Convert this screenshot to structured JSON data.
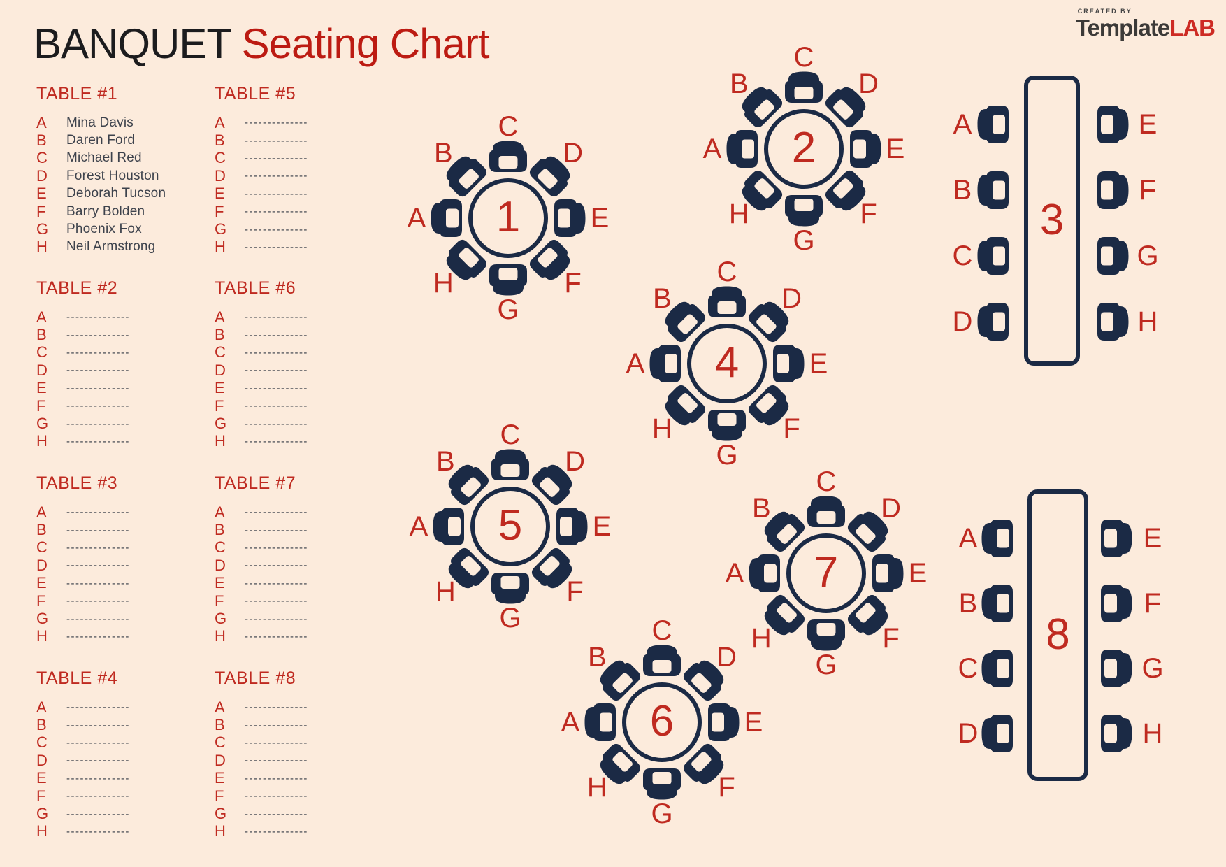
{
  "header": {
    "title_black": "BANQUET",
    "title_red": "Seating Chart"
  },
  "logo": {
    "tagline": "CREATED BY",
    "brand_dark": "Template",
    "brand_red": "LAB"
  },
  "colors": {
    "background": "#fcebdc",
    "navy": "#1b2a45",
    "red": "#bf2a20",
    "title_red": "#bc1b12",
    "title_black": "#1c1c1e",
    "name_text": "#3d424c",
    "dash": "#3a404a",
    "logo_gray": "#454545",
    "logo_dark": "#3c3a38"
  },
  "placeholder_dashes": "--------------",
  "table_lists": [
    {
      "title": "TABLE #1",
      "seats": [
        {
          "letter": "A",
          "name": "Mina Davis"
        },
        {
          "letter": "B",
          "name": "Daren Ford"
        },
        {
          "letter": "C",
          "name": "Michael Red"
        },
        {
          "letter": "D",
          "name": "Forest Houston"
        },
        {
          "letter": "E",
          "name": "Deborah Tucson"
        },
        {
          "letter": "F",
          "name": "Barry Bolden"
        },
        {
          "letter": "G",
          "name": "Phoenix Fox"
        },
        {
          "letter": "H",
          "name": "Neil Armstrong"
        }
      ]
    },
    {
      "title": "TABLE #2",
      "seats": [
        {
          "letter": "A",
          "name": ""
        },
        {
          "letter": "B",
          "name": ""
        },
        {
          "letter": "C",
          "name": ""
        },
        {
          "letter": "D",
          "name": ""
        },
        {
          "letter": "E",
          "name": ""
        },
        {
          "letter": "F",
          "name": ""
        },
        {
          "letter": "G",
          "name": ""
        },
        {
          "letter": "H",
          "name": ""
        }
      ]
    },
    {
      "title": "TABLE #3",
      "seats": [
        {
          "letter": "A",
          "name": ""
        },
        {
          "letter": "B",
          "name": ""
        },
        {
          "letter": "C",
          "name": ""
        },
        {
          "letter": "D",
          "name": ""
        },
        {
          "letter": "E",
          "name": ""
        },
        {
          "letter": "F",
          "name": ""
        },
        {
          "letter": "G",
          "name": ""
        },
        {
          "letter": "H",
          "name": ""
        }
      ]
    },
    {
      "title": "TABLE #4",
      "seats": [
        {
          "letter": "A",
          "name": ""
        },
        {
          "letter": "B",
          "name": ""
        },
        {
          "letter": "C",
          "name": ""
        },
        {
          "letter": "D",
          "name": ""
        },
        {
          "letter": "E",
          "name": ""
        },
        {
          "letter": "F",
          "name": ""
        },
        {
          "letter": "G",
          "name": ""
        },
        {
          "letter": "H",
          "name": ""
        }
      ]
    },
    {
      "title": "TABLE #5",
      "seats": [
        {
          "letter": "A",
          "name": ""
        },
        {
          "letter": "B",
          "name": ""
        },
        {
          "letter": "C",
          "name": ""
        },
        {
          "letter": "D",
          "name": ""
        },
        {
          "letter": "E",
          "name": ""
        },
        {
          "letter": "F",
          "name": ""
        },
        {
          "letter": "G",
          "name": ""
        },
        {
          "letter": "H",
          "name": ""
        }
      ]
    },
    {
      "title": "TABLE #6",
      "seats": [
        {
          "letter": "A",
          "name": ""
        },
        {
          "letter": "B",
          "name": ""
        },
        {
          "letter": "C",
          "name": ""
        },
        {
          "letter": "D",
          "name": ""
        },
        {
          "letter": "E",
          "name": ""
        },
        {
          "letter": "F",
          "name": ""
        },
        {
          "letter": "G",
          "name": ""
        },
        {
          "letter": "H",
          "name": ""
        }
      ]
    },
    {
      "title": "TABLE #7",
      "seats": [
        {
          "letter": "A",
          "name": ""
        },
        {
          "letter": "B",
          "name": ""
        },
        {
          "letter": "C",
          "name": ""
        },
        {
          "letter": "D",
          "name": ""
        },
        {
          "letter": "E",
          "name": ""
        },
        {
          "letter": "F",
          "name": ""
        },
        {
          "letter": "G",
          "name": ""
        },
        {
          "letter": "H",
          "name": ""
        }
      ]
    },
    {
      "title": "TABLE #8",
      "seats": [
        {
          "letter": "A",
          "name": ""
        },
        {
          "letter": "B",
          "name": ""
        },
        {
          "letter": "C",
          "name": ""
        },
        {
          "letter": "D",
          "name": ""
        },
        {
          "letter": "E",
          "name": ""
        },
        {
          "letter": "F",
          "name": ""
        },
        {
          "letter": "G",
          "name": ""
        },
        {
          "letter": "H",
          "name": ""
        }
      ]
    }
  ],
  "floor_tables": [
    {
      "number": "1",
      "shape": "round",
      "seats": [
        "A",
        "B",
        "C",
        "D",
        "E",
        "F",
        "G",
        "H"
      ]
    },
    {
      "number": "2",
      "shape": "round",
      "seats": [
        "A",
        "B",
        "C",
        "D",
        "E",
        "F",
        "G",
        "H"
      ]
    },
    {
      "number": "3",
      "shape": "rectangular",
      "left_seats": [
        "A",
        "B",
        "C",
        "D"
      ],
      "right_seats": [
        "E",
        "F",
        "G",
        "H"
      ]
    },
    {
      "number": "4",
      "shape": "round",
      "seats": [
        "A",
        "B",
        "C",
        "D",
        "E",
        "F",
        "G",
        "H"
      ]
    },
    {
      "number": "5",
      "shape": "round",
      "seats": [
        "A",
        "B",
        "C",
        "D",
        "E",
        "F",
        "G",
        "H"
      ]
    },
    {
      "number": "6",
      "shape": "round",
      "seats": [
        "A",
        "B",
        "C",
        "D",
        "E",
        "F",
        "G",
        "H"
      ]
    },
    {
      "number": "7",
      "shape": "round",
      "seats": [
        "A",
        "B",
        "C",
        "D",
        "E",
        "F",
        "G",
        "H"
      ]
    },
    {
      "number": "8",
      "shape": "rectangular",
      "left_seats": [
        "A",
        "B",
        "C",
        "D"
      ],
      "right_seats": [
        "E",
        "F",
        "G",
        "H"
      ]
    }
  ]
}
